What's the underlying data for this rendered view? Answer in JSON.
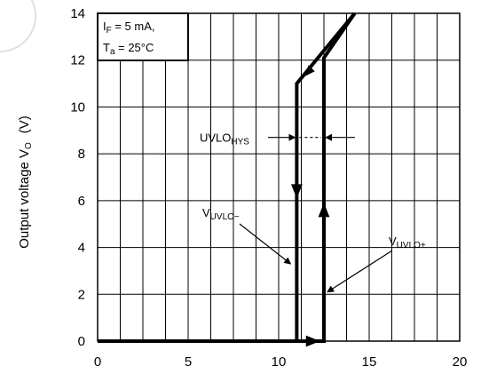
{
  "chart_data": {
    "type": "line",
    "ylabel": "Output voltage   V",
    "ylabel_sub": "O",
    "ylabel_unit": "(V)",
    "xlim": [
      0,
      20
    ],
    "ylim": [
      0,
      14
    ],
    "x_ticks": [
      0,
      5,
      10,
      15,
      20
    ],
    "y_ticks": [
      0,
      2,
      4,
      6,
      8,
      10,
      12,
      14
    ],
    "grid": true,
    "conditions": {
      "line1_main": "I",
      "line1_sub": "F",
      "line1_rest": " = 5 mA,",
      "line2_main": "T",
      "line2_sub": "a",
      "line2_rest": " = 25°C"
    },
    "series": [
      {
        "points": [
          [
            0,
            0
          ],
          [
            12.5,
            0
          ],
          [
            12.5,
            12.1
          ],
          [
            14.2,
            14
          ]
        ]
      },
      {
        "points": [
          [
            14.2,
            14
          ],
          [
            11,
            11
          ],
          [
            11,
            0
          ]
        ]
      }
    ],
    "annotations": {
      "hys_main": "UVLO",
      "hys_sub": "HYS",
      "minus_main": "V",
      "minus_sub": "UVLO−",
      "plus_main": "V",
      "plus_sub": "UVLO+"
    },
    "thresholds": {
      "uvlo_minus": 11,
      "uvlo_plus": 12.5
    }
  }
}
